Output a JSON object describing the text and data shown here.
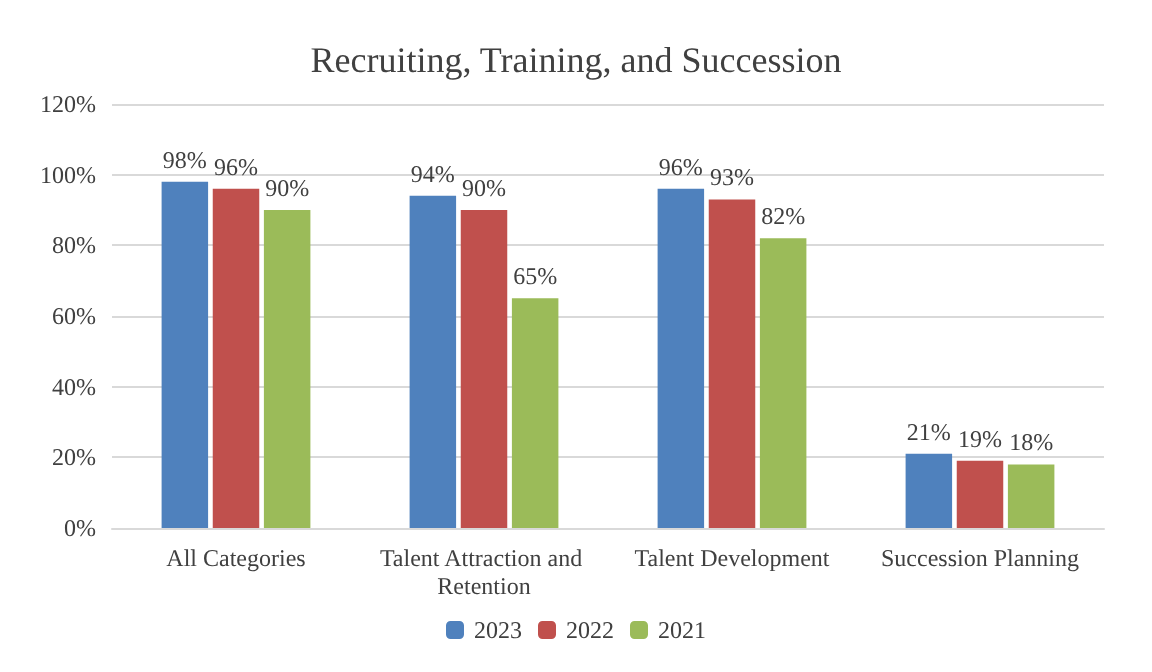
{
  "chart_data": {
    "type": "bar",
    "title": "Recruiting, Training, and Succession",
    "categories": [
      "All Categories",
      "Talent Attraction and Retention",
      "Talent Development",
      "Succession Planning"
    ],
    "series": [
      {
        "name": "2023",
        "color": "#4f81bd",
        "values": [
          98,
          94,
          96,
          21
        ],
        "value_labels": [
          "98%",
          "94%",
          "96%",
          "21%"
        ]
      },
      {
        "name": "2022",
        "color": "#c0504d",
        "values": [
          96,
          90,
          93,
          19
        ],
        "value_labels": [
          "96%",
          "90%",
          "93%",
          "19%"
        ]
      },
      {
        "name": "2021",
        "color": "#9bbb59",
        "values": [
          90,
          65,
          82,
          18
        ],
        "value_labels": [
          "90%",
          "65%",
          "82%",
          "18%"
        ]
      }
    ],
    "ylim": [
      0,
      120
    ],
    "yticks": [
      {
        "value": 0,
        "label": "0%"
      },
      {
        "value": 20,
        "label": "20%"
      },
      {
        "value": 40,
        "label": "40%"
      },
      {
        "value": 60,
        "label": "60%"
      },
      {
        "value": 80,
        "label": "80%"
      },
      {
        "value": 100,
        "label": "100%"
      },
      {
        "value": 120,
        "label": "120%"
      }
    ],
    "grid": "y",
    "legend": "bottom"
  }
}
